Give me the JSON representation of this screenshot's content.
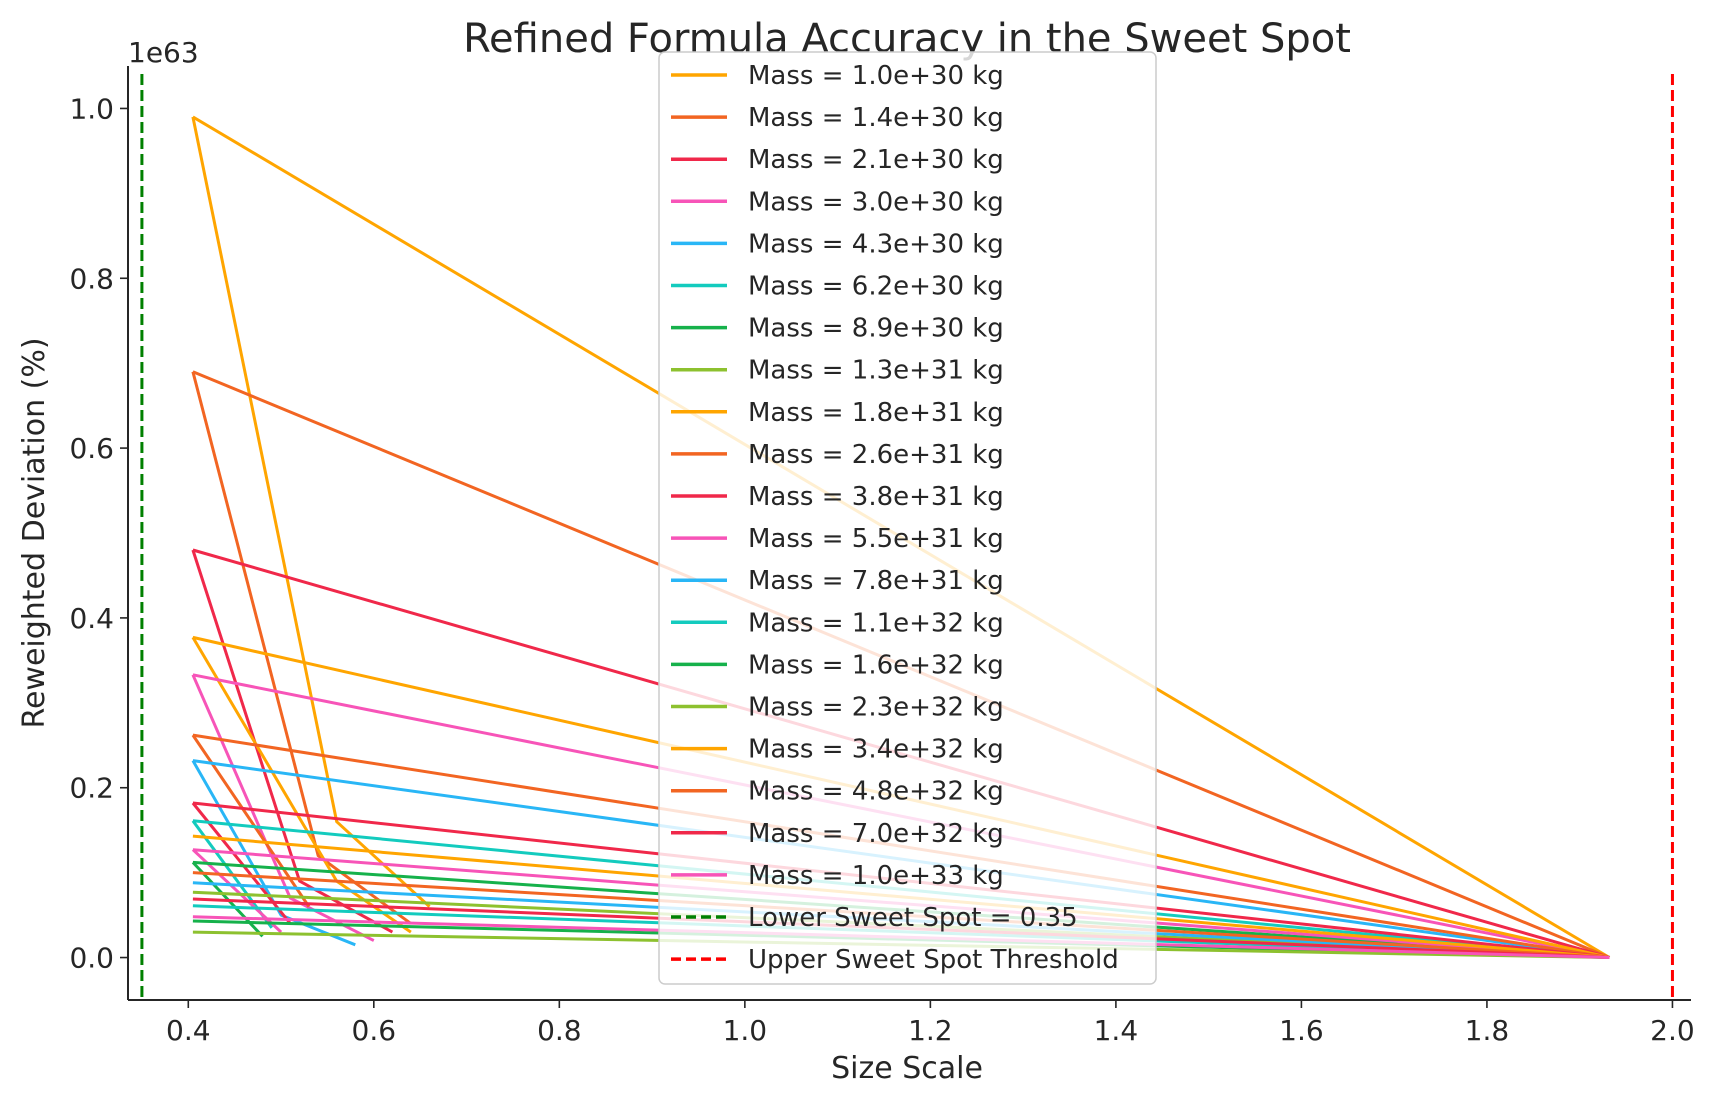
{
  "chart_data": {
    "type": "line",
    "title": "Refined Formula Accuracy in the Sweet Spot",
    "xlabel": "Size Scale",
    "ylabel": "Reweighted Deviation (%)",
    "y_offset_label": "1e63",
    "xlim": [
      0.335,
      2.02
    ],
    "ylim": [
      -0.05,
      1.05
    ],
    "x_ticks": [
      0.4,
      0.6,
      0.8,
      1.0,
      1.2,
      1.4,
      1.6,
      1.8,
      2.0
    ],
    "x_tick_labels": [
      "0.4",
      "0.6",
      "0.8",
      "1.0",
      "1.2",
      "1.4",
      "1.6",
      "1.8",
      "2.0"
    ],
    "y_ticks": [
      0.0,
      0.2,
      0.4,
      0.6,
      0.8,
      1.0
    ],
    "y_tick_labels": [
      "0.0",
      "0.2",
      "0.4",
      "0.6",
      "0.8",
      "1.0"
    ],
    "grid": false,
    "legend_position": "top-center",
    "x": [
      0.405,
      1.932
    ],
    "series": [
      {
        "name": "Mass = 1.0e+30 kg",
        "color": "#ffa500",
        "values": [
          0.99,
          0.0
        ]
      },
      {
        "name": "Mass = 1.4e+30 kg",
        "color": "#f26522",
        "values": [
          0.69,
          0.0
        ]
      },
      {
        "name": "Mass = 2.1e+30 kg",
        "color": "#f0284a",
        "values": [
          0.48,
          0.0
        ]
      },
      {
        "name": "Mass = 3.0e+30 kg",
        "color": "#f754b8",
        "values": [
          0.333,
          0.0
        ]
      },
      {
        "name": "Mass = 4.3e+30 kg",
        "color": "#29b6f6",
        "values": [
          0.232,
          0.0
        ]
      },
      {
        "name": "Mass = 6.2e+30 kg",
        "color": "#13cbbe",
        "values": [
          0.161,
          0.0
        ]
      },
      {
        "name": "Mass = 8.9e+30 kg",
        "color": "#16b14b",
        "values": [
          0.112,
          0.0
        ]
      },
      {
        "name": "Mass = 1.3e+31 kg",
        "color": "#8dc12f",
        "values": [
          0.077,
          0.0
        ]
      },
      {
        "name": "Mass = 1.8e+31 kg",
        "color": "#ffa500",
        "values": [
          0.377,
          0.0
        ]
      },
      {
        "name": "Mass = 2.6e+31 kg",
        "color": "#f26522",
        "values": [
          0.262,
          0.0
        ]
      },
      {
        "name": "Mass = 3.8e+31 kg",
        "color": "#f0284a",
        "values": [
          0.182,
          0.0
        ]
      },
      {
        "name": "Mass = 5.5e+31 kg",
        "color": "#f754b8",
        "values": [
          0.127,
          0.0
        ]
      },
      {
        "name": "Mass = 7.8e+31 kg",
        "color": "#29b6f6",
        "values": [
          0.088,
          0.0
        ]
      },
      {
        "name": "Mass = 1.1e+32 kg",
        "color": "#13cbbe",
        "values": [
          0.061,
          0.0
        ]
      },
      {
        "name": "Mass = 1.6e+32 kg",
        "color": "#16b14b",
        "values": [
          0.043,
          0.0
        ]
      },
      {
        "name": "Mass = 2.3e+32 kg",
        "color": "#8dc12f",
        "values": [
          0.03,
          0.0
        ]
      },
      {
        "name": "Mass = 3.4e+32 kg",
        "color": "#ffa500",
        "values": [
          0.143,
          0.0
        ]
      },
      {
        "name": "Mass = 4.8e+32 kg",
        "color": "#f26522",
        "values": [
          0.1,
          0.0
        ]
      },
      {
        "name": "Mass = 7.0e+32 kg",
        "color": "#f0284a",
        "values": [
          0.069,
          0.0
        ]
      },
      {
        "name": "Mass = 1.0e+33 kg",
        "color": "#f754b8",
        "values": [
          0.048,
          0.0
        ]
      }
    ],
    "zigzag": [
      {
        "color": "#ffa500",
        "points": [
          [
            0.405,
            0.99
          ],
          [
            0.56,
            0.16
          ],
          [
            0.66,
            0.06
          ]
        ]
      },
      {
        "color": "#f26522",
        "points": [
          [
            0.405,
            0.69
          ],
          [
            0.54,
            0.12
          ],
          [
            0.64,
            0.04
          ]
        ]
      },
      {
        "color": "#f0284a",
        "points": [
          [
            0.405,
            0.48
          ],
          [
            0.52,
            0.09
          ],
          [
            0.62,
            0.03
          ]
        ]
      },
      {
        "color": "#f754b8",
        "points": [
          [
            0.405,
            0.333
          ],
          [
            0.51,
            0.07
          ],
          [
            0.6,
            0.02
          ]
        ]
      },
      {
        "color": "#29b6f6",
        "points": [
          [
            0.405,
            0.232
          ],
          [
            0.5,
            0.05
          ],
          [
            0.58,
            0.015
          ]
        ]
      },
      {
        "color": "#13cbbe",
        "points": [
          [
            0.405,
            0.161
          ],
          [
            0.49,
            0.035
          ]
        ]
      },
      {
        "color": "#16b14b",
        "points": [
          [
            0.405,
            0.112
          ],
          [
            0.48,
            0.025
          ]
        ]
      },
      {
        "color": "#ffa500",
        "points": [
          [
            0.405,
            0.377
          ],
          [
            0.56,
            0.09
          ],
          [
            0.64,
            0.03
          ]
        ]
      },
      {
        "color": "#f26522",
        "points": [
          [
            0.405,
            0.262
          ],
          [
            0.53,
            0.06
          ]
        ]
      },
      {
        "color": "#f0284a",
        "points": [
          [
            0.405,
            0.182
          ],
          [
            0.51,
            0.04
          ]
        ]
      },
      {
        "color": "#f754b8",
        "points": [
          [
            0.405,
            0.127
          ],
          [
            0.5,
            0.03
          ]
        ]
      }
    ],
    "reference_lines": [
      {
        "name": "Lower Sweet Spot = 0.35",
        "x": 0.35,
        "color": "#008000",
        "style": "dashed"
      },
      {
        "name": "Upper Sweet Spot Threshold",
        "x": 2.0,
        "color": "#ff0000",
        "style": "dashed"
      }
    ]
  }
}
